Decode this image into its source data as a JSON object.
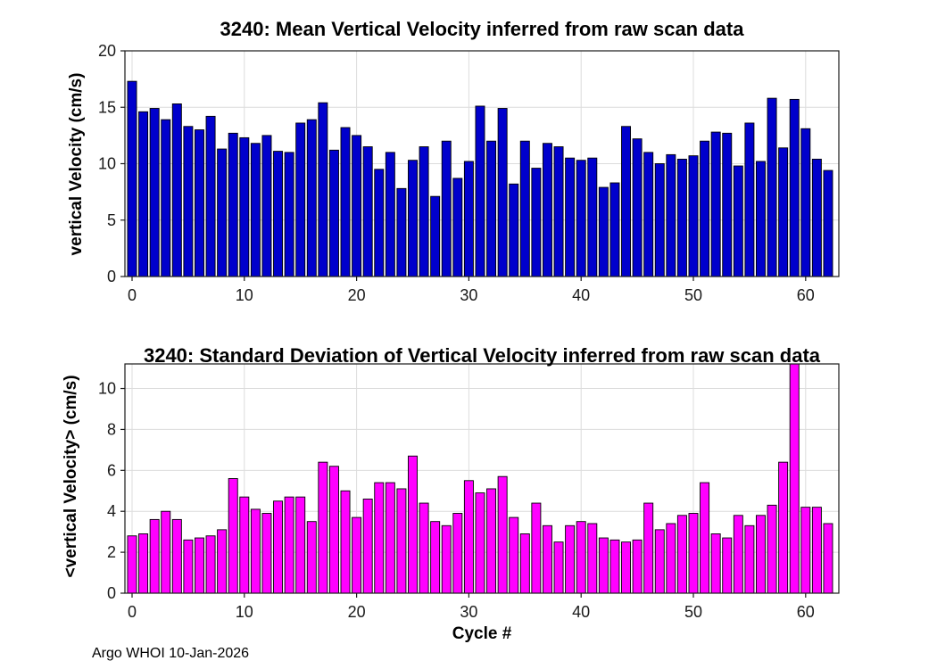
{
  "footer": {
    "text": "Argo WHOI 10-Jan-2026"
  },
  "chart_data": [
    {
      "type": "bar",
      "title": "3240: Mean Vertical Velocity inferred from raw scan data",
      "xlabel": "",
      "ylabel": "vertical Velocity (cm/s)",
      "legend": "none",
      "grid": true,
      "bar_color": "#0000cc",
      "edge_color": "#000000",
      "xlim": [
        -0.65,
        63
      ],
      "ylim": [
        0,
        20
      ],
      "xticks": [
        0,
        10,
        20,
        30,
        40,
        50,
        60
      ],
      "yticks": [
        0,
        5,
        10,
        15,
        20
      ],
      "x_start": 0,
      "x": [
        0,
        1,
        2,
        3,
        4,
        5,
        6,
        7,
        8,
        9,
        10,
        11,
        12,
        13,
        14,
        15,
        16,
        17,
        18,
        19,
        20,
        21,
        22,
        23,
        24,
        25,
        26,
        27,
        28,
        29,
        30,
        31,
        32,
        33,
        34,
        35,
        36,
        37,
        38,
        39,
        40,
        41,
        42,
        43,
        44,
        45,
        46,
        47,
        48,
        49,
        50,
        51,
        52,
        53,
        54,
        55,
        56,
        57,
        58,
        59,
        60,
        61,
        62
      ],
      "values": [
        17.3,
        14.6,
        14.9,
        13.9,
        15.3,
        13.3,
        13.0,
        14.2,
        11.3,
        12.7,
        12.3,
        11.8,
        12.5,
        11.1,
        11.0,
        13.6,
        13.9,
        15.4,
        11.2,
        13.2,
        12.5,
        11.5,
        9.5,
        11.0,
        7.8,
        10.3,
        11.5,
        7.1,
        12.0,
        8.7,
        10.2,
        15.1,
        12.0,
        14.9,
        8.2,
        12.0,
        9.6,
        11.8,
        11.5,
        10.5,
        10.3,
        10.5,
        7.9,
        8.3,
        13.3,
        12.2,
        11.0,
        10.0,
        10.8,
        10.4,
        10.7,
        12.0,
        12.8,
        12.7,
        9.8,
        13.6,
        10.2,
        15.8,
        11.4,
        15.7,
        13.1,
        10.4,
        9.4
      ]
    },
    {
      "type": "bar",
      "title": "3240: Standard Deviation of Vertical Velocity inferred from raw scan data",
      "xlabel": "Cycle #",
      "ylabel": "<vertical Velocity> (cm/s)",
      "legend": "none",
      "grid": true,
      "bar_color": "#ff00ff",
      "edge_color": "#000000",
      "xlim": [
        -0.65,
        63
      ],
      "ylim": [
        0,
        11.2
      ],
      "xticks": [
        0,
        10,
        20,
        30,
        40,
        50,
        60
      ],
      "yticks": [
        0,
        2,
        4,
        6,
        8,
        10
      ],
      "x_start": 0,
      "x": [
        0,
        1,
        2,
        3,
        4,
        5,
        6,
        7,
        8,
        9,
        10,
        11,
        12,
        13,
        14,
        15,
        16,
        17,
        18,
        19,
        20,
        21,
        22,
        23,
        24,
        25,
        26,
        27,
        28,
        29,
        30,
        31,
        32,
        33,
        34,
        35,
        36,
        37,
        38,
        39,
        40,
        41,
        42,
        43,
        44,
        45,
        46,
        47,
        48,
        49,
        50,
        51,
        52,
        53,
        54,
        55,
        56,
        57,
        58,
        59,
        60,
        61,
        62
      ],
      "values": [
        2.8,
        2.9,
        3.6,
        4.0,
        3.6,
        2.6,
        2.7,
        2.8,
        3.1,
        5.6,
        4.7,
        4.1,
        3.9,
        4.5,
        4.7,
        4.7,
        3.5,
        6.4,
        6.2,
        5.0,
        3.7,
        4.6,
        5.4,
        5.4,
        5.1,
        6.7,
        4.4,
        3.5,
        3.3,
        3.9,
        5.5,
        4.9,
        5.1,
        5.7,
        3.7,
        2.9,
        4.4,
        3.3,
        2.5,
        3.3,
        3.5,
        3.4,
        2.7,
        2.6,
        2.5,
        2.6,
        4.4,
        3.1,
        3.4,
        3.8,
        3.9,
        5.4,
        2.9,
        2.7,
        3.8,
        3.3,
        3.8,
        4.3,
        6.4,
        11.3,
        4.2,
        4.2,
        3.4
      ]
    }
  ]
}
